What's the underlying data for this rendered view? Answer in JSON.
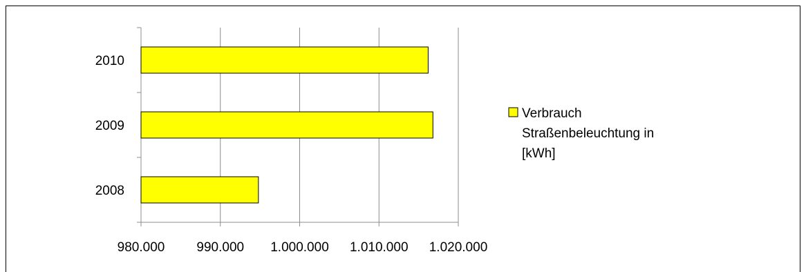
{
  "chart_data": {
    "type": "bar",
    "orientation": "horizontal",
    "categories": [
      "2008",
      "2009",
      "2010"
    ],
    "series": [
      {
        "name": "Verbrauch Straßenbeleuchtung in [kWh]",
        "values": [
          994800,
          1016800,
          1016200
        ]
      }
    ],
    "xlim": [
      980000,
      1020000
    ],
    "x_ticks": [
      980000,
      990000,
      1000000,
      1010000,
      1020000
    ],
    "x_tick_labels": [
      "980.000",
      "990.000",
      "1.000.000",
      "1.010.000",
      "1.020.000"
    ],
    "grid": "vertical",
    "legend_position": "right",
    "legend_lines": [
      "Verbrauch",
      "Straßenbeleuchtung in",
      "[kWh]"
    ],
    "colors": {
      "bar_fill": "#ffff00",
      "bar_stroke": "#000000",
      "grid": "#8c8c8c",
      "axis": "#8c8c8c"
    }
  }
}
